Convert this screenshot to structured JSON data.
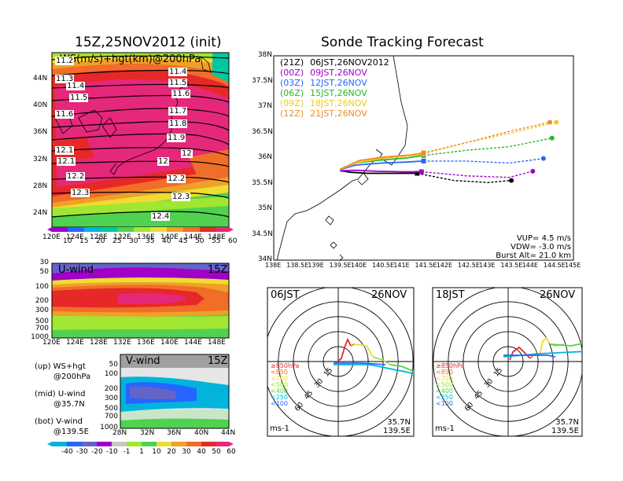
{
  "left_title": "15Z,25NOV2012 (init)",
  "right_title": "Sonde Tracking Forecast",
  "colors": {
    "purple": "#a000c8",
    "blue": "#2864ff",
    "cyan": "#00b4dc",
    "teal": "#00c8a0",
    "green": "#50d250",
    "lime": "#a0e632",
    "yellow": "#f0dc32",
    "orange": "#f0a028",
    "dorange": "#f06e28",
    "red": "#e62828",
    "magenta": "#e6287a",
    "gray": "#a0a0a0"
  },
  "chart_data": [
    {
      "type": "heatmap",
      "name": "upper map",
      "label": "WS(m/s)+hgt(km)@200hPa",
      "xlim": [
        120,
        150
      ],
      "ylim": [
        22,
        48
      ],
      "x_ticks": [
        "120E",
        "124E",
        "128E",
        "132E",
        "136E",
        "140E",
        "144E",
        "148E"
      ],
      "y_ticks": [
        "24N",
        "28N",
        "32N",
        "36N",
        "40N",
        "44N"
      ],
      "contour_labels": [
        "11.2",
        "11.3",
        "11.4",
        "11.5",
        "11.6",
        "11.4",
        "11.5",
        "11.6",
        "11.7",
        "11.8",
        "11.9",
        "12",
        "12.1",
        "12.1",
        "12",
        "12.2",
        "12.2",
        "12.3",
        "12.3",
        "12.4"
      ],
      "colorbar_ticks": [
        "10",
        "15",
        "20",
        "25",
        "30",
        "35",
        "40",
        "45",
        "50",
        "55",
        "60"
      ]
    },
    {
      "type": "heatmap",
      "name": "U-wind cross section",
      "label": "U-wind",
      "time_label": "15Z",
      "x_ticks": [
        "120E",
        "124E",
        "128E",
        "132E",
        "136E",
        "140E",
        "144E",
        "148E"
      ],
      "y_ticks": [
        "30",
        "50",
        "100",
        "200",
        "300",
        "500",
        "700",
        "1000"
      ]
    },
    {
      "type": "heatmap",
      "name": "V-wind cross section",
      "label": "V-wind",
      "time_label": "15Z",
      "x_ticks": [
        "28N",
        "32N",
        "36N",
        "40N",
        "44N"
      ],
      "y_ticks": [
        "50",
        "100",
        "200",
        "300",
        "500",
        "700",
        "1000"
      ],
      "colorbar_ticks": [
        "-40",
        "-30",
        "-20",
        "-10",
        "-1",
        "1",
        "10",
        "20",
        "30",
        "40",
        "50",
        "60"
      ]
    },
    {
      "type": "line",
      "name": "sonde tracks",
      "xlim": [
        138,
        145
      ],
      "ylim": [
        34,
        38
      ],
      "x_ticks": [
        "138E",
        "138.5E",
        "139E",
        "139.5E",
        "140E",
        "140.5E",
        "141E",
        "141.5E",
        "142E",
        "142.5E",
        "143E",
        "143.5E",
        "144E",
        "144.5E",
        "145E"
      ],
      "y_ticks": [
        "34N",
        "34.5N",
        "35N",
        "35.5N",
        "36N",
        "36.5N",
        "37N",
        "37.5N",
        "38N"
      ],
      "legend": [
        {
          "code": "(21Z)",
          "label": "06JST,26NOV2012",
          "color": "#000000"
        },
        {
          "code": "(00Z)",
          "label": "09JST,26NOV",
          "color": "#a000c8"
        },
        {
          "code": "(03Z)",
          "label": "12JST,26NOV",
          "color": "#2864ff"
        },
        {
          "code": "(06Z)",
          "label": "15JST,26NOV",
          "color": "#28b428"
        },
        {
          "code": "(09Z)",
          "label": "18JST,26NOV",
          "color": "#f0c81e"
        },
        {
          "code": "(12Z)",
          "label": "21JST,26NOV",
          "color": "#f08c28"
        }
      ],
      "series": [
        {
          "name": "06JST",
          "color": "#000000",
          "x": [
            139.55,
            139.8,
            140.2,
            140.8,
            141.2,
            141.35
          ],
          "y": [
            35.75,
            35.72,
            35.7,
            35.7,
            35.7,
            35.7
          ],
          "ext_x": [
            141.35,
            142.2,
            143.0,
            143.55
          ],
          "ext_y": [
            35.7,
            35.56,
            35.52,
            35.56
          ],
          "end": [
            143.55,
            35.56
          ]
        },
        {
          "name": "09JST",
          "color": "#a000c8",
          "x": [
            139.55,
            139.9,
            140.4,
            141.0,
            141.45
          ],
          "y": [
            35.75,
            35.76,
            35.74,
            35.73,
            35.73
          ],
          "ext_x": [
            141.45,
            142.5,
            143.5,
            144.05
          ],
          "ext_y": [
            35.73,
            35.65,
            35.62,
            35.74
          ],
          "end": [
            144.05,
            35.74
          ]
        },
        {
          "name": "12JST",
          "color": "#2864ff",
          "x": [
            139.55,
            139.9,
            140.5,
            141.1,
            141.5
          ],
          "y": [
            35.77,
            35.86,
            35.9,
            35.92,
            35.94
          ],
          "ext_x": [
            141.5,
            142.5,
            143.5,
            144.3
          ],
          "ext_y": [
            35.94,
            35.94,
            35.9,
            35.99
          ],
          "end": [
            144.3,
            35.99
          ]
        },
        {
          "name": "15JST",
          "color": "#28b428",
          "x": [
            139.55,
            139.9,
            140.5,
            141.1,
            141.5
          ],
          "y": [
            35.77,
            35.9,
            35.96,
            36.0,
            36.05
          ],
          "ext_x": [
            141.5,
            142.5,
            143.5,
            144.5
          ],
          "ext_y": [
            36.05,
            36.15,
            36.22,
            36.39
          ],
          "end": [
            144.5,
            36.39
          ]
        },
        {
          "name": "18JST",
          "color": "#f0c81e",
          "x": [
            139.55,
            140.0,
            140.6,
            141.2,
            141.5
          ],
          "y": [
            35.78,
            35.92,
            36.0,
            36.05,
            36.08
          ],
          "ext_x": [
            141.5,
            142.5,
            143.5,
            144.6
          ],
          "ext_y": [
            36.08,
            36.3,
            36.48,
            36.7
          ],
          "end": [
            144.6,
            36.7
          ]
        },
        {
          "name": "21JST",
          "color": "#f08c28",
          "x": [
            139.55,
            140.0,
            140.6,
            141.2,
            141.5
          ],
          "y": [
            35.78,
            35.95,
            36.02,
            36.06,
            36.1
          ],
          "ext_x": [
            141.5,
            142.5,
            143.5,
            144.45
          ],
          "ext_y": [
            36.1,
            36.3,
            36.52,
            36.7
          ],
          "end": [
            144.45,
            36.7
          ]
        }
      ],
      "info": {
        "vup": "VUP= 4.5 m/s",
        "vdw": "VDW= -3.0 m/s",
        "burst": "Burst Alt= 21.0 km"
      }
    },
    {
      "type": "line",
      "name": "hodograph 06JST",
      "time_label": "06JST",
      "date_label": "26NOV",
      "ring_labels": [
        "15",
        "30",
        "45",
        "60"
      ],
      "legend": [
        "≥850hPa",
        "<850",
        "<700",
        "<500",
        "<400",
        "<250",
        "<100"
      ],
      "lat_label": "35.7N",
      "lon_label": "139.5E",
      "unit_label": "ms-1"
    },
    {
      "type": "line",
      "name": "hodograph 18JST",
      "time_label": "18JST",
      "date_label": "26NOV",
      "ring_labels": [
        "15",
        "30",
        "45",
        "60"
      ],
      "legend": [
        "≥850hPa",
        "<850",
        "<700",
        "<500",
        "<400",
        "<250",
        "<100"
      ],
      "lat_label": "35.7N",
      "lon_label": "139.5E",
      "unit_label": "ms-1"
    }
  ],
  "side_labels": {
    "up_a": "(up) WS+hgt",
    "up_b": "@200hPa",
    "mid_a": "(mid) U-wind",
    "mid_b": "@35.7N",
    "bot_a": "(bot) V-wind",
    "bot_b": "@139.5E"
  }
}
